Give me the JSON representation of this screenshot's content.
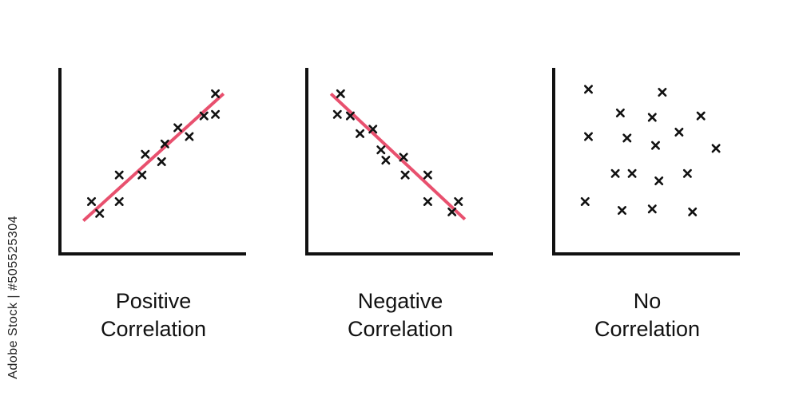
{
  "panels": [
    {
      "caption_line1": "Positive",
      "caption_line2": "Correlation",
      "trend_line": "ascending",
      "points": [
        [
          0.13,
          0.23
        ],
        [
          0.18,
          0.15
        ],
        [
          0.3,
          0.23
        ],
        [
          0.3,
          0.41
        ],
        [
          0.44,
          0.41
        ],
        [
          0.46,
          0.55
        ],
        [
          0.56,
          0.5
        ],
        [
          0.58,
          0.62
        ],
        [
          0.66,
          0.73
        ],
        [
          0.73,
          0.67
        ],
        [
          0.82,
          0.81
        ],
        [
          0.89,
          0.82
        ],
        [
          0.89,
          0.96
        ]
      ],
      "line": [
        [
          0.08,
          0.1
        ],
        [
          0.94,
          0.96
        ]
      ]
    },
    {
      "caption_line1": "Negative",
      "caption_line2": "Correlation",
      "trend_line": "descending",
      "points": [
        [
          0.13,
          0.82
        ],
        [
          0.15,
          0.96
        ],
        [
          0.21,
          0.81
        ],
        [
          0.27,
          0.69
        ],
        [
          0.35,
          0.72
        ],
        [
          0.4,
          0.58
        ],
        [
          0.43,
          0.51
        ],
        [
          0.54,
          0.53
        ],
        [
          0.55,
          0.41
        ],
        [
          0.69,
          0.41
        ],
        [
          0.69,
          0.23
        ],
        [
          0.84,
          0.16
        ],
        [
          0.88,
          0.23
        ]
      ],
      "line": [
        [
          0.09,
          0.96
        ],
        [
          0.92,
          0.11
        ]
      ]
    },
    {
      "caption_line1": "No",
      "caption_line2": "Correlation",
      "trend_line": "none",
      "points": [
        [
          0.15,
          0.99
        ],
        [
          0.15,
          0.67
        ],
        [
          0.31,
          0.42
        ],
        [
          0.34,
          0.83
        ],
        [
          0.38,
          0.66
        ],
        [
          0.41,
          0.42
        ],
        [
          0.53,
          0.8
        ],
        [
          0.55,
          0.61
        ],
        [
          0.57,
          0.37
        ],
        [
          0.59,
          0.97
        ],
        [
          0.69,
          0.7
        ],
        [
          0.74,
          0.42
        ],
        [
          0.82,
          0.81
        ],
        [
          0.91,
          0.59
        ],
        [
          0.13,
          0.23
        ],
        [
          0.35,
          0.17
        ],
        [
          0.53,
          0.18
        ],
        [
          0.77,
          0.16
        ]
      ],
      "line": null
    }
  ],
  "side_text": "Adobe Stock | #505525304",
  "colors": {
    "axis": "#111111",
    "marker": "#111111",
    "trend_line": "#e8506e"
  }
}
